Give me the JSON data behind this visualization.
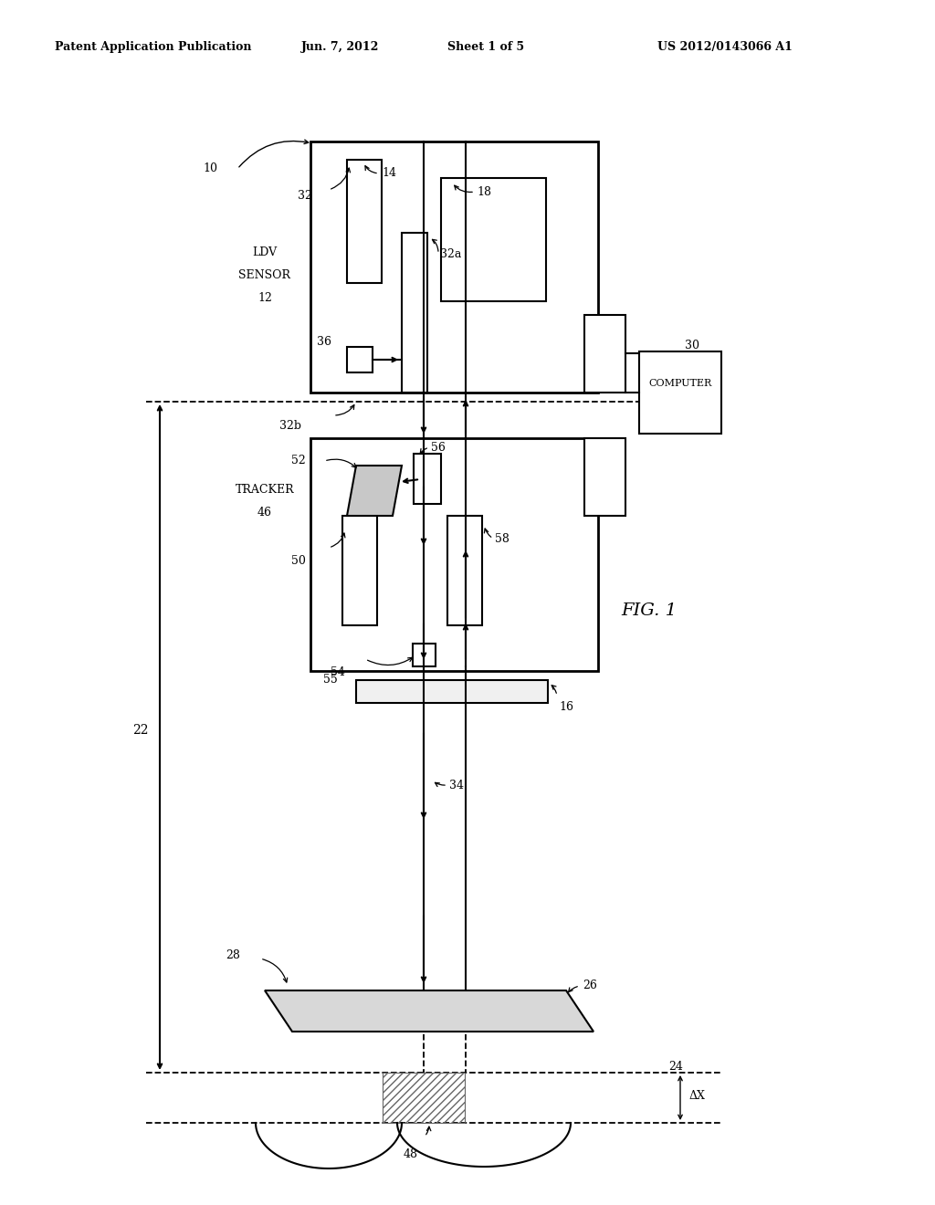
{
  "bg_color": "#ffffff",
  "header_text": "Patent Application Publication",
  "header_date": "Jun. 7, 2012",
  "header_sheet": "Sheet 1 of 5",
  "header_patent": "US 2012/0143066 A1",
  "fig_label": "FIG. 1"
}
